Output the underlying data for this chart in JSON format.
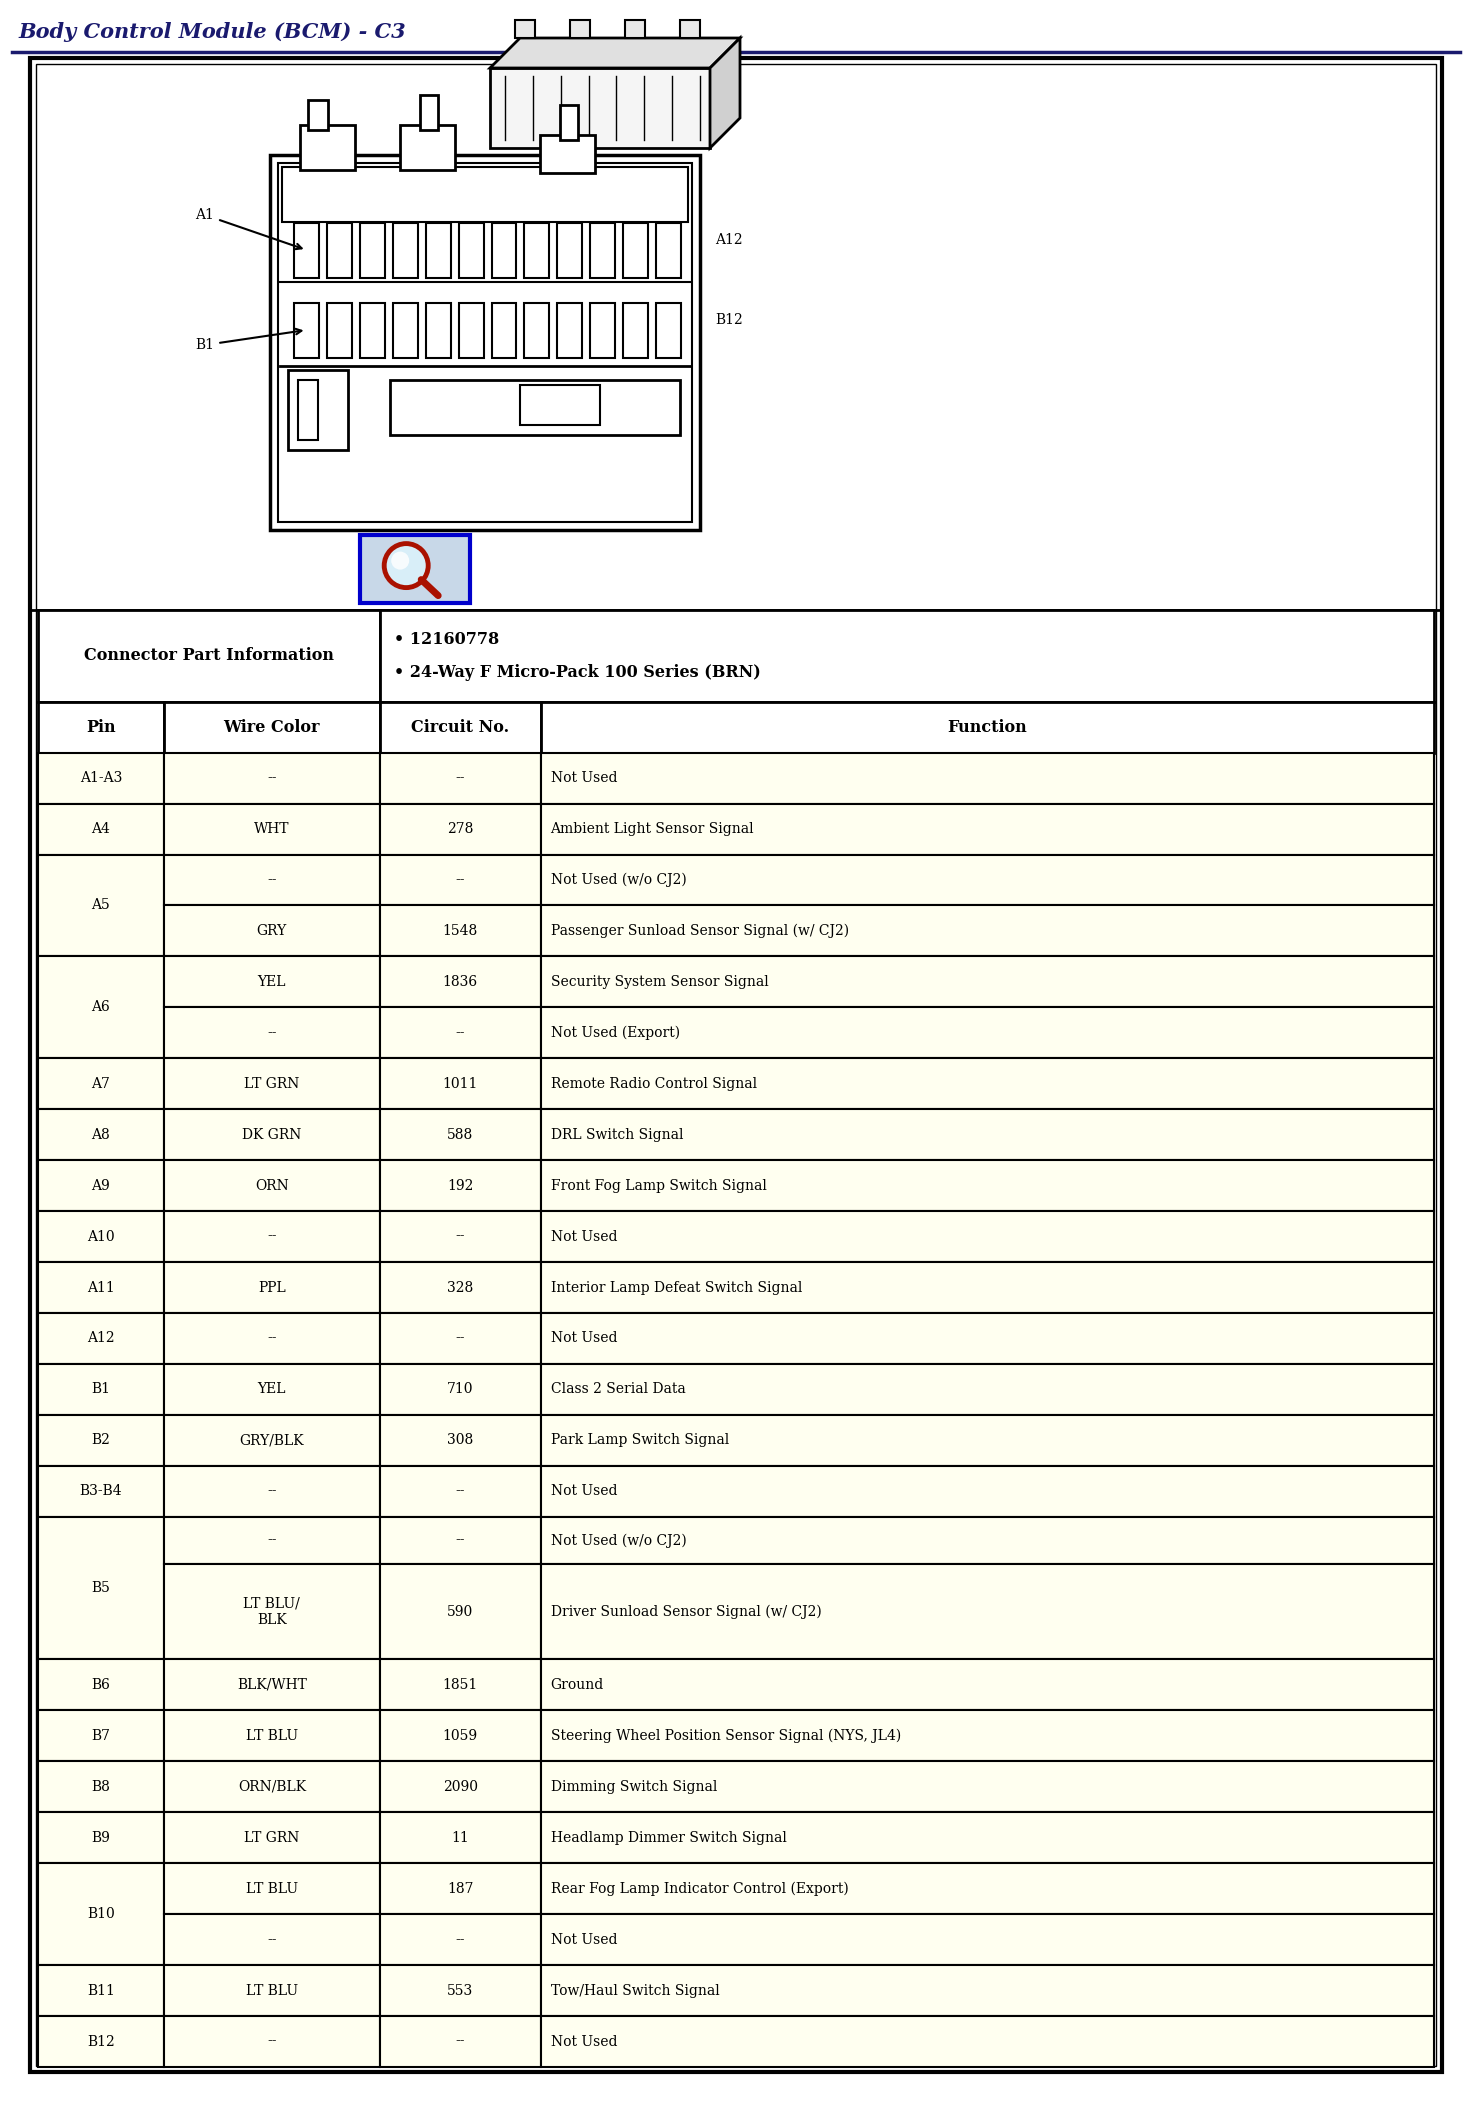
{
  "title": "Body Control Module (BCM) - C3",
  "title_color": "#1a1a6e",
  "title_fontsize": 15,
  "connector_info_label": "Connector Part Information",
  "connector_info_bullets": [
    "• 12160778",
    "• 24-Way F Micro-Pack 100 Series (BRN)"
  ],
  "header_row": [
    "Pin",
    "Wire Color",
    "Circuit No.",
    "Function"
  ],
  "background_color": "#FFFFFF",
  "cell_bg_color": "#FFFFF0",
  "header_bg_color": "#FFFFFF",
  "border_color": "#000000",
  "col_ratios": [
    0.09,
    0.155,
    0.115,
    0.64
  ],
  "visual_rows": [
    {
      "pin": "A1-A3",
      "wire": "--",
      "circuit": "--",
      "func": "Not Used",
      "merged": false,
      "hf": 1.0
    },
    {
      "pin": "A4",
      "wire": "WHT",
      "circuit": "278",
      "func": "Ambient Light Sensor Signal",
      "merged": false,
      "hf": 1.0
    },
    {
      "pin": "A5",
      "wire": [
        "--",
        "GRY"
      ],
      "circuit": [
        "--",
        "1548"
      ],
      "func": [
        "Not Used (w/o CJ2)",
        "Passenger Sunload Sensor Signal (w/ CJ2)"
      ],
      "merged": true,
      "hf": 2.0
    },
    {
      "pin": "A6",
      "wire": [
        "YEL",
        "--"
      ],
      "circuit": [
        "1836",
        "--"
      ],
      "func": [
        "Security System Sensor Signal",
        "Not Used (Export)"
      ],
      "merged": true,
      "hf": 2.0
    },
    {
      "pin": "A7",
      "wire": "LT GRN",
      "circuit": "1011",
      "func": "Remote Radio Control Signal",
      "merged": false,
      "hf": 1.0
    },
    {
      "pin": "A8",
      "wire": "DK GRN",
      "circuit": "588",
      "func": "DRL Switch Signal",
      "merged": false,
      "hf": 1.0
    },
    {
      "pin": "A9",
      "wire": "ORN",
      "circuit": "192",
      "func": "Front Fog Lamp Switch Signal",
      "merged": false,
      "hf": 1.0
    },
    {
      "pin": "A10",
      "wire": "--",
      "circuit": "--",
      "func": "Not Used",
      "merged": false,
      "hf": 1.0
    },
    {
      "pin": "A11",
      "wire": "PPL",
      "circuit": "328",
      "func": "Interior Lamp Defeat Switch Signal",
      "merged": false,
      "hf": 1.0
    },
    {
      "pin": "A12",
      "wire": "--",
      "circuit": "--",
      "func": "Not Used",
      "merged": false,
      "hf": 1.0
    },
    {
      "pin": "B1",
      "wire": "YEL",
      "circuit": "710",
      "func": "Class 2 Serial Data",
      "merged": false,
      "hf": 1.0
    },
    {
      "pin": "B2",
      "wire": "GRY/BLK",
      "circuit": "308",
      "func": "Park Lamp Switch Signal",
      "merged": false,
      "hf": 1.0
    },
    {
      "pin": "B3-B4",
      "wire": "--",
      "circuit": "--",
      "func": "Not Used",
      "merged": false,
      "hf": 1.0
    },
    {
      "pin": "B5",
      "wire": [
        "--",
        "LT BLU/\nBLK"
      ],
      "circuit": [
        "--",
        "590"
      ],
      "func": [
        "Not Used (w/o CJ2)",
        "Driver Sunload Sensor Signal (w/ CJ2)"
      ],
      "merged": true,
      "hf": 2.8
    },
    {
      "pin": "B6",
      "wire": "BLK/WHT",
      "circuit": "1851",
      "func": "Ground",
      "merged": false,
      "hf": 1.0
    },
    {
      "pin": "B7",
      "wire": "LT BLU",
      "circuit": "1059",
      "func": "Steering Wheel Position Sensor Signal (NYS, JL4)",
      "merged": false,
      "hf": 1.0
    },
    {
      "pin": "B8",
      "wire": "ORN/BLK",
      "circuit": "2090",
      "func": "Dimming Switch Signal",
      "merged": false,
      "hf": 1.0
    },
    {
      "pin": "B9",
      "wire": "LT GRN",
      "circuit": "11",
      "func": "Headlamp Dimmer Switch Signal",
      "merged": false,
      "hf": 1.0
    },
    {
      "pin": "B10",
      "wire": [
        "LT BLU",
        "--"
      ],
      "circuit": [
        "187",
        "--"
      ],
      "func": [
        "Rear Fog Lamp Indicator Control (Export)",
        "Not Used"
      ],
      "merged": true,
      "hf": 2.0
    },
    {
      "pin": "B11",
      "wire": "LT BLU",
      "circuit": "553",
      "func": "Tow/Haul Switch Signal",
      "merged": false,
      "hf": 1.0
    },
    {
      "pin": "B12",
      "wire": "--",
      "circuit": "--",
      "func": "Not Used",
      "merged": false,
      "hf": 1.0
    }
  ]
}
